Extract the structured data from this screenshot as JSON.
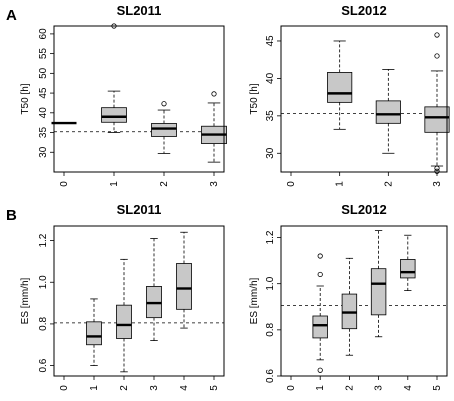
{
  "labels": {
    "A": "A",
    "B": "B"
  },
  "chart_data": [
    {
      "type": "box",
      "title": "SL2011",
      "ylabel": "T50 [h]",
      "ylim": [
        25,
        62
      ],
      "yticks": [
        30,
        35,
        40,
        45,
        50,
        55,
        60
      ],
      "categories": [
        "0",
        "1",
        "2",
        "3"
      ],
      "ref_line": 35.2,
      "boxes": [
        {
          "cat": "0",
          "min": 37.4,
          "q1": 37.4,
          "median": 37.4,
          "q3": 37.4,
          "max": 37.4,
          "outliers": []
        },
        {
          "cat": "1",
          "min": 35.0,
          "q1": 37.6,
          "median": 39.0,
          "q3": 41.3,
          "max": 45.5,
          "outliers": [
            62.0
          ]
        },
        {
          "cat": "2",
          "min": 29.7,
          "q1": 34.0,
          "median": 36.0,
          "q3": 37.3,
          "max": 40.7,
          "outliers": [
            42.3
          ]
        },
        {
          "cat": "3",
          "min": 27.5,
          "q1": 32.2,
          "median": 34.5,
          "q3": 36.6,
          "max": 42.5,
          "outliers": [
            44.8
          ]
        }
      ]
    },
    {
      "type": "box",
      "title": "SL2012",
      "ylabel": "T50 [h]",
      "ylim": [
        27.5,
        47
      ],
      "yticks": [
        30,
        35,
        40,
        45
      ],
      "categories": [
        "0",
        "1",
        "2",
        "3"
      ],
      "ref_line": 35.3,
      "boxes": [
        {
          "cat": "1",
          "min": 33.2,
          "q1": 36.8,
          "median": 38.0,
          "q3": 40.8,
          "max": 45.0,
          "outliers": []
        },
        {
          "cat": "2",
          "min": 30.0,
          "q1": 34.0,
          "median": 35.2,
          "q3": 37.0,
          "max": 41.2,
          "outliers": []
        },
        {
          "cat": "3",
          "min": 28.3,
          "q1": 32.8,
          "median": 34.8,
          "q3": 36.2,
          "max": 41.0,
          "outliers": [
            45.8,
            43.0,
            28.0,
            27.6
          ]
        }
      ]
    },
    {
      "type": "box",
      "title": "SL2011",
      "ylabel": "ES [mm/h]",
      "ylim": [
        0.55,
        1.27
      ],
      "yticks": [
        0.6,
        0.8,
        1.0,
        1.2
      ],
      "ytick_labels": [
        "0.6",
        "0.8",
        "1.0",
        "1.2"
      ],
      "categories": [
        "0",
        "1",
        "2",
        "3",
        "4",
        "5"
      ],
      "ref_line": 0.805,
      "boxes": [
        {
          "cat": "1",
          "min": 0.6,
          "q1": 0.7,
          "median": 0.74,
          "q3": 0.81,
          "max": 0.92,
          "outliers": []
        },
        {
          "cat": "2",
          "min": 0.57,
          "q1": 0.73,
          "median": 0.795,
          "q3": 0.89,
          "max": 1.11,
          "outliers": []
        },
        {
          "cat": "3",
          "min": 0.72,
          "q1": 0.83,
          "median": 0.9,
          "q3": 0.98,
          "max": 1.21,
          "outliers": []
        },
        {
          "cat": "4",
          "min": 0.78,
          "q1": 0.87,
          "median": 0.97,
          "q3": 1.09,
          "max": 1.24,
          "outliers": []
        }
      ]
    },
    {
      "type": "box",
      "title": "SL2012",
      "ylabel": "ES [mm/h]",
      "ylim": [
        0.6,
        1.25
      ],
      "yticks": [
        0.6,
        0.8,
        1.0,
        1.2
      ],
      "ytick_labels": [
        "0.6",
        "0.8",
        "1.0",
        "1.2"
      ],
      "categories": [
        "0",
        "1",
        "2",
        "3",
        "4",
        "5"
      ],
      "ref_line": 0.905,
      "boxes": [
        {
          "cat": "1",
          "min": 0.67,
          "q1": 0.765,
          "median": 0.82,
          "q3": 0.86,
          "max": 0.99,
          "outliers": [
            1.12,
            1.04,
            0.625
          ]
        },
        {
          "cat": "2",
          "min": 0.69,
          "q1": 0.805,
          "median": 0.875,
          "q3": 0.955,
          "max": 1.11,
          "outliers": []
        },
        {
          "cat": "3",
          "min": 0.77,
          "q1": 0.865,
          "median": 1.0,
          "q3": 1.065,
          "max": 1.23,
          "outliers": []
        },
        {
          "cat": "4",
          "min": 0.97,
          "q1": 1.025,
          "median": 1.05,
          "q3": 1.105,
          "max": 1.21,
          "outliers": []
        }
      ]
    }
  ]
}
